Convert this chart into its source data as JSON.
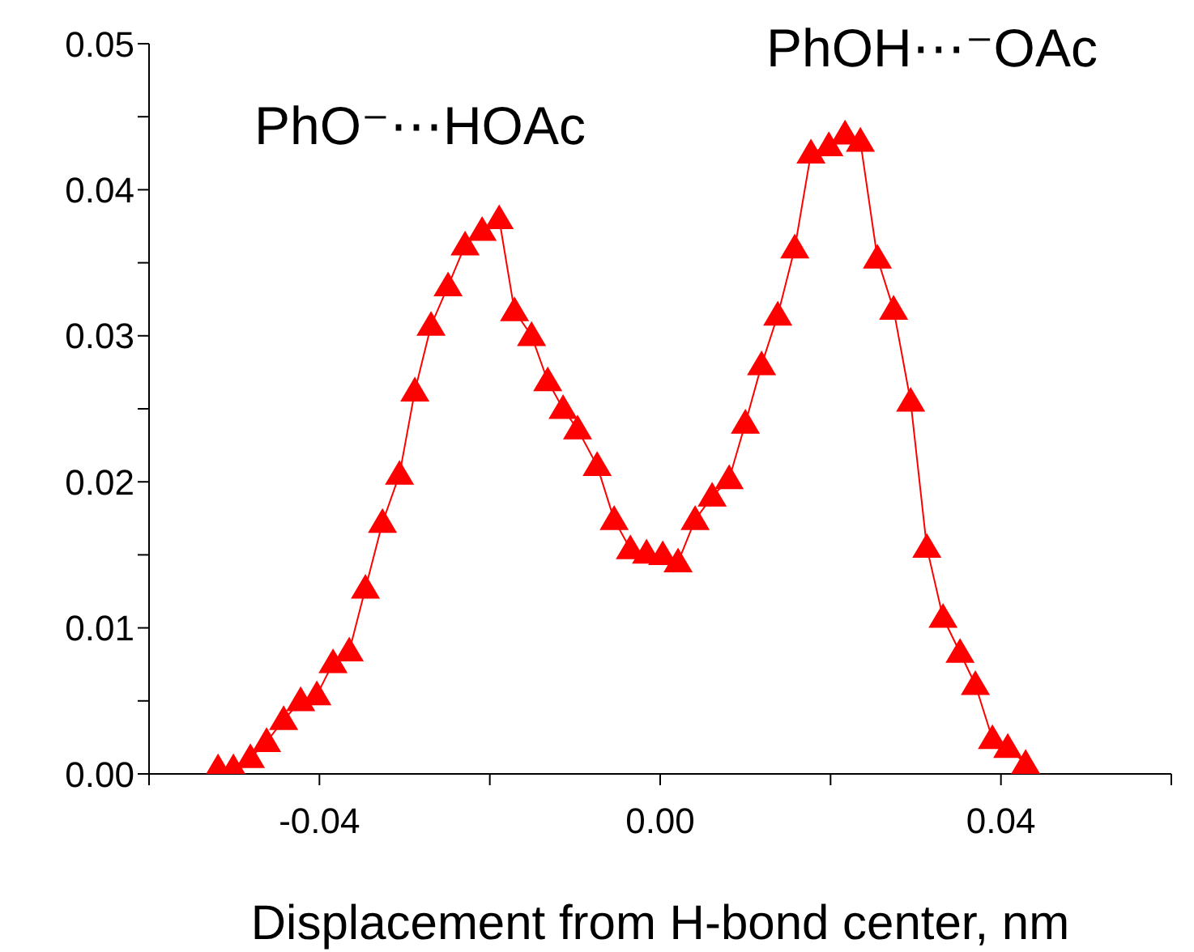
{
  "chart_data": {
    "type": "line",
    "xlabel": "Displacement from H-bond center, nm",
    "annotations": [
      "PhO⁻⋯HOAc",
      "PhOH⋯⁻OAc"
    ],
    "x": [
      -0.0519,
      -0.0501,
      -0.0481,
      -0.0462,
      -0.0442,
      -0.0422,
      -0.0403,
      -0.0384,
      -0.0365,
      -0.0346,
      -0.0326,
      -0.0306,
      -0.0288,
      -0.0269,
      -0.0249,
      -0.0229,
      -0.0209,
      -0.0189,
      -0.0171,
      -0.0151,
      -0.0132,
      -0.0114,
      -0.0097,
      -0.0074,
      -0.0054,
      -0.0035,
      -0.0016,
      0.0003,
      0.0021,
      0.0041,
      0.0061,
      0.0081,
      0.01,
      0.0119,
      0.0138,
      0.0158,
      0.0177,
      0.0198,
      0.0217,
      0.0235,
      0.0255,
      0.0274,
      0.0294,
      0.0313,
      0.0332,
      0.0352,
      0.037,
      0.039,
      0.0408,
      0.0429
    ],
    "series": [
      {
        "color": "#ff0000",
        "values": [
          0.0004,
          0.0004,
          0.0011,
          0.0022,
          0.0037,
          0.005,
          0.0054,
          0.0076,
          0.0084,
          0.0127,
          0.0172,
          0.0205,
          0.0262,
          0.0307,
          0.0334,
          0.0362,
          0.0372,
          0.038,
          0.0317,
          0.03,
          0.0269,
          0.025,
          0.0236,
          0.0211,
          0.0174,
          0.0154,
          0.0151,
          0.015,
          0.0145,
          0.0174,
          0.019,
          0.0202,
          0.024,
          0.028,
          0.0314,
          0.036,
          0.0425,
          0.043,
          0.0438,
          0.0433,
          0.0353,
          0.0318,
          0.0255,
          0.0155,
          0.0107,
          0.0083,
          0.0061,
          0.0024,
          0.0018,
          0.0007
        ]
      }
    ],
    "xlim": [
      -0.06,
      0.06
    ],
    "xticks": [
      {
        "value": -0.06,
        "label": null
      },
      {
        "value": -0.04,
        "label": "-0.04"
      },
      {
        "value": -0.02,
        "label": null
      },
      {
        "value": 0,
        "label": "0.00"
      },
      {
        "value": 0.02,
        "label": null
      },
      {
        "value": 0.04,
        "label": "0.04"
      },
      {
        "value": 0.06,
        "label": null
      }
    ],
    "ylim": [
      0,
      0.05
    ],
    "yticks": [
      {
        "value": 0,
        "label": "0.00"
      },
      {
        "value": 0.005,
        "label": null
      },
      {
        "value": 0.01,
        "label": "0.01"
      },
      {
        "value": 0.015,
        "label": null
      },
      {
        "value": 0.02,
        "label": "0.02"
      },
      {
        "value": 0.025,
        "label": null
      },
      {
        "value": 0.03,
        "label": "0.03"
      },
      {
        "value": 0.035,
        "label": null
      },
      {
        "value": 0.04,
        "label": "0.04"
      },
      {
        "value": 0.045,
        "label": null
      },
      {
        "value": 0.05,
        "label": "0.05"
      }
    ],
    "grid": false,
    "legend": false,
    "marker": "triangle",
    "line_style": "solid"
  }
}
